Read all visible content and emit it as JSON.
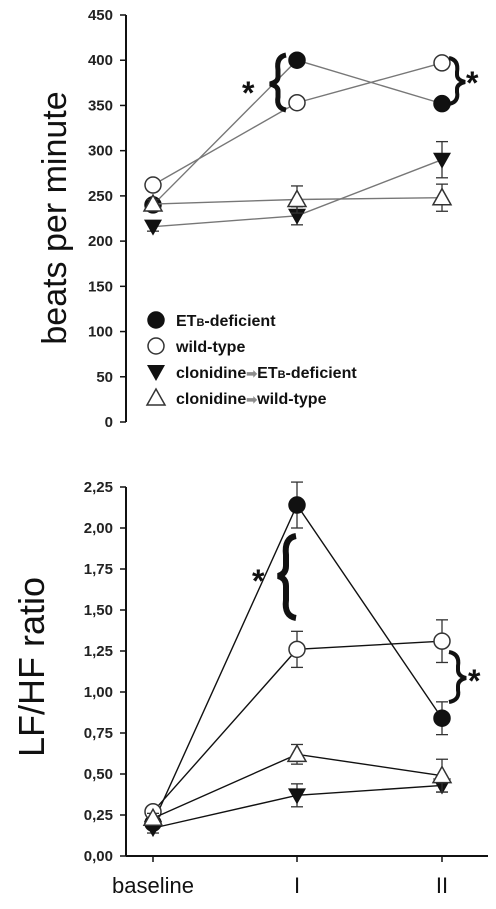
{
  "chart_data": [
    {
      "type": "line",
      "ylabel": "beats per minute",
      "ylim": [
        0,
        450
      ],
      "yticks": [
        "0",
        "50",
        "100",
        "150",
        "200",
        "250",
        "300",
        "350",
        "400",
        "450"
      ],
      "categories": [
        "baseline",
        "I",
        "II"
      ],
      "series": [
        {
          "name": "ETB-deficient",
          "marker": "filled-circle",
          "values": [
            240,
            400,
            352
          ],
          "errors": [
            5,
            5,
            6
          ]
        },
        {
          "name": "wild-type",
          "marker": "open-circle",
          "values": [
            262,
            353,
            397
          ],
          "errors": [
            4,
            5,
            5
          ]
        },
        {
          "name": "clonidine → ETB-deficient",
          "marker": "filled-triangle-down",
          "values": [
            216,
            228,
            290
          ],
          "errors": [
            5,
            10,
            20
          ]
        },
        {
          "name": "clonidine → wild-type",
          "marker": "open-triangle-up",
          "values": [
            241,
            246,
            248
          ],
          "errors": [
            5,
            15,
            15
          ]
        }
      ],
      "annotations": [
        "*",
        "*"
      ]
    },
    {
      "type": "line",
      "ylabel": "LF/HF ratio",
      "ylim": [
        0,
        2.25
      ],
      "yticks": [
        "0,00",
        "0,25",
        "0,50",
        "0,75",
        "1,00",
        "1,25",
        "1,50",
        "1,75",
        "2,00",
        "2,25"
      ],
      "categories": [
        "baseline",
        "I",
        "II"
      ],
      "series": [
        {
          "name": "ETB-deficient",
          "marker": "filled-circle",
          "values": [
            0.2,
            2.14,
            0.84
          ],
          "errors": [
            0.03,
            0.14,
            0.1
          ]
        },
        {
          "name": "wild-type",
          "marker": "open-circle",
          "values": [
            0.27,
            1.26,
            1.31
          ],
          "errors": [
            0.03,
            0.11,
            0.13
          ]
        },
        {
          "name": "clonidine → ETB-deficient",
          "marker": "filled-triangle-down",
          "values": [
            0.17,
            0.37,
            0.43
          ],
          "errors": [
            0.03,
            0.07,
            0.04
          ]
        },
        {
          "name": "clonidine → wild-type",
          "marker": "open-triangle-up",
          "values": [
            0.23,
            0.62,
            0.49
          ],
          "errors": [
            0.03,
            0.06,
            0.1
          ]
        }
      ],
      "annotations": [
        "*",
        "*"
      ]
    }
  ],
  "legend": {
    "entries": [
      {
        "prefix": "",
        "main": "ET",
        "small": "B",
        "suffix": "-deficient"
      },
      {
        "prefix": "wild-type",
        "main": "",
        "small": "",
        "suffix": ""
      },
      {
        "prefix": "clonidine",
        "main": "ET",
        "small": "B",
        "suffix": "-deficient"
      },
      {
        "prefix": "clonidine",
        "main": "",
        "small": "",
        "suffix": "wild-type"
      }
    ],
    "arrow_color": "#8c8c8c"
  }
}
